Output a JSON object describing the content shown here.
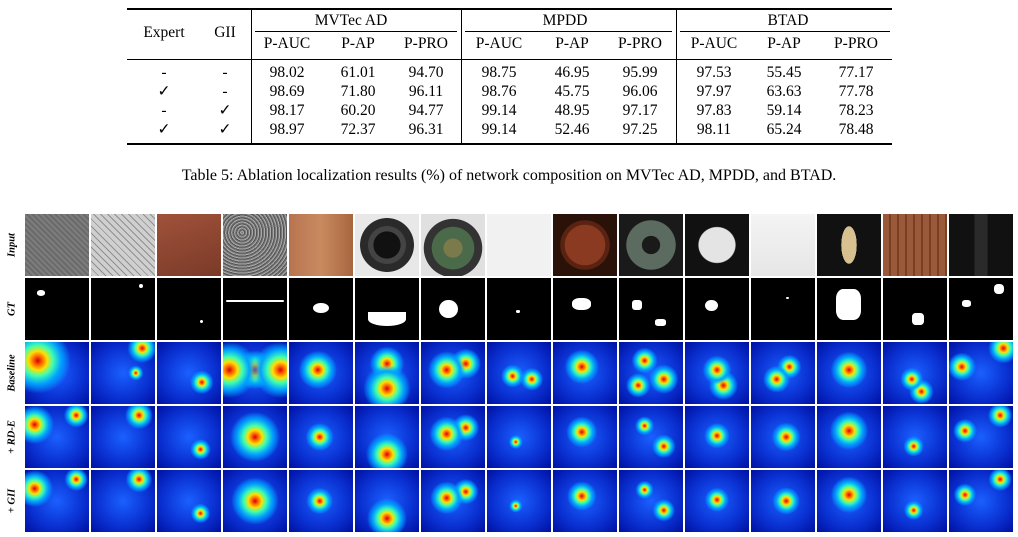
{
  "table": {
    "header": {
      "expert": "Expert",
      "gii": "GII",
      "groups": [
        "MVTec AD",
        "MPDD",
        "BTAD"
      ],
      "metrics": [
        "P-AUC",
        "P-AP",
        "P-PRO"
      ]
    },
    "rows": [
      {
        "expert": "-",
        "gii": "-",
        "values": [
          "98.02",
          "61.01",
          "94.70",
          "98.75",
          "46.95",
          "95.99",
          "97.53",
          "55.45",
          "77.17"
        ]
      },
      {
        "expert": "✓",
        "gii": "-",
        "values": [
          "98.69",
          "71.80",
          "96.11",
          "98.76",
          "45.75",
          "96.06",
          "97.97",
          "63.63",
          "77.78"
        ]
      },
      {
        "expert": "-",
        "gii": "✓",
        "values": [
          "98.17",
          "60.20",
          "94.77",
          "99.14",
          "48.95",
          "97.17",
          "97.83",
          "59.14",
          "78.23"
        ]
      },
      {
        "expert": "✓",
        "gii": "✓",
        "values": [
          "98.97",
          "72.37",
          "96.31",
          "99.14",
          "52.46",
          "97.25",
          "98.11",
          "65.24",
          "78.48"
        ]
      }
    ]
  },
  "caption": "Table 5: Ablation localization results (%) of network composition on MVTec AD, MPDD, and BTAD.",
  "figure": {
    "row_labels": [
      "Input",
      "GT",
      "Baseline",
      "+ RD-E",
      "+ GII"
    ],
    "columns": [
      "carpet",
      "grid",
      "leather",
      "tile",
      "wood",
      "bottle",
      "cable",
      "capsule",
      "hazelnut",
      "metal_nut",
      "pill",
      "screw",
      "toothbrush",
      "transistor",
      "zipper"
    ]
  }
}
